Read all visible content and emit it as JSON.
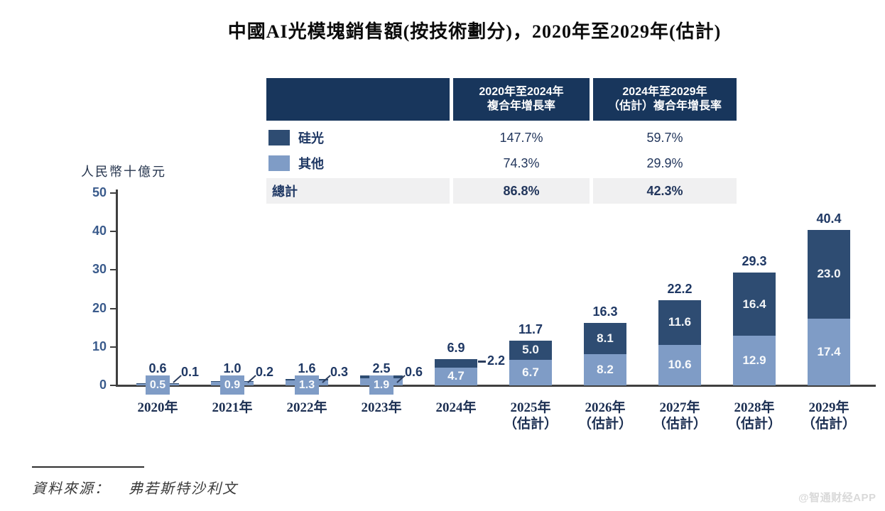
{
  "title": "中國AI光模塊銷售額(按技術劃分)，2020年至2029年(估計)",
  "unit_label": "人民幣十億元",
  "colors": {
    "dark_series": "#2E4C72",
    "light_series": "#7F9CC6",
    "header_bg": "#18365C",
    "total_row_bg": "#F0F0F1",
    "axis": "#3F3F3F",
    "label_navy": "#1F3864",
    "ytick_blue": "#3A5B8C"
  },
  "table": {
    "headers": [
      {
        "line1": "2020年至2024年",
        "line2": "複合年增長率"
      },
      {
        "line1": "2024年至2029年",
        "line2": "（估計）複合年增長率"
      }
    ],
    "rows": [
      {
        "label": "硅光",
        "swatch": "dark",
        "values": [
          "147.7%",
          "59.7%"
        ],
        "total": false
      },
      {
        "label": "其他",
        "swatch": "light",
        "values": [
          "74.3%",
          "29.9%"
        ],
        "total": false
      },
      {
        "label": "總計",
        "swatch": null,
        "values": [
          "86.8%",
          "42.3%"
        ],
        "total": true
      }
    ]
  },
  "chart_data": {
    "type": "bar",
    "stacked": true,
    "title": "中國AI光模塊銷售額(按技術劃分)，2020年至2029年(估計)",
    "ylabel": "人民幣十億元",
    "ylim": [
      0,
      50
    ],
    "yticks": [
      0,
      10,
      20,
      30,
      40,
      50
    ],
    "grid": false,
    "legend_position": "table-top-left",
    "categories": [
      {
        "label": "2020年",
        "sub": ""
      },
      {
        "label": "2021年",
        "sub": ""
      },
      {
        "label": "2022年",
        "sub": ""
      },
      {
        "label": "2023年",
        "sub": ""
      },
      {
        "label": "2024年",
        "sub": ""
      },
      {
        "label": "2025年",
        "sub": "（估計）"
      },
      {
        "label": "2026年",
        "sub": "（估計）"
      },
      {
        "label": "2027年",
        "sub": "（估計）"
      },
      {
        "label": "2028年",
        "sub": "（估計）"
      },
      {
        "label": "2029年",
        "sub": "（估計）"
      }
    ],
    "series": [
      {
        "name": "其他",
        "color": "#7F9CC6",
        "values": [
          0.5,
          0.9,
          1.3,
          1.9,
          4.7,
          6.7,
          8.2,
          10.6,
          12.9,
          17.4
        ]
      },
      {
        "name": "硅光",
        "color": "#2E4C72",
        "values": [
          0.1,
          0.2,
          0.3,
          0.6,
          2.2,
          5.0,
          8.1,
          11.6,
          16.4,
          23.0
        ]
      }
    ],
    "totals": [
      0.6,
      1.0,
      1.6,
      2.5,
      6.9,
      11.7,
      16.3,
      22.2,
      29.3,
      40.4
    ]
  },
  "source": {
    "label": "資料來源：",
    "value": "弗若斯特沙利文"
  },
  "watermark": "@智通财经APP"
}
